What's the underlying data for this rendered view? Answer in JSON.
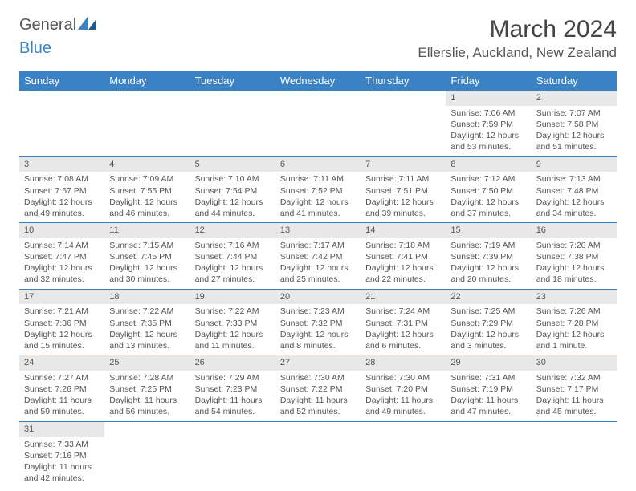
{
  "logo": {
    "word1": "General",
    "word2": "Blue"
  },
  "title": "March 2024",
  "location": "Ellerslie, Auckland, New Zealand",
  "colors": {
    "header_bg": "#3b82c4",
    "header_fg": "#ffffff",
    "daynum_bg": "#e8e8e8",
    "rule": "#3b82c4",
    "text": "#555555"
  },
  "weekdays": [
    "Sunday",
    "Monday",
    "Tuesday",
    "Wednesday",
    "Thursday",
    "Friday",
    "Saturday"
  ],
  "weeks": [
    [
      null,
      null,
      null,
      null,
      null,
      {
        "n": "1",
        "sr": "7:06 AM",
        "ss": "7:59 PM",
        "dl": "12 hours and 53 minutes."
      },
      {
        "n": "2",
        "sr": "7:07 AM",
        "ss": "7:58 PM",
        "dl": "12 hours and 51 minutes."
      }
    ],
    [
      {
        "n": "3",
        "sr": "7:08 AM",
        "ss": "7:57 PM",
        "dl": "12 hours and 49 minutes."
      },
      {
        "n": "4",
        "sr": "7:09 AM",
        "ss": "7:55 PM",
        "dl": "12 hours and 46 minutes."
      },
      {
        "n": "5",
        "sr": "7:10 AM",
        "ss": "7:54 PM",
        "dl": "12 hours and 44 minutes."
      },
      {
        "n": "6",
        "sr": "7:11 AM",
        "ss": "7:52 PM",
        "dl": "12 hours and 41 minutes."
      },
      {
        "n": "7",
        "sr": "7:11 AM",
        "ss": "7:51 PM",
        "dl": "12 hours and 39 minutes."
      },
      {
        "n": "8",
        "sr": "7:12 AM",
        "ss": "7:50 PM",
        "dl": "12 hours and 37 minutes."
      },
      {
        "n": "9",
        "sr": "7:13 AM",
        "ss": "7:48 PM",
        "dl": "12 hours and 34 minutes."
      }
    ],
    [
      {
        "n": "10",
        "sr": "7:14 AM",
        "ss": "7:47 PM",
        "dl": "12 hours and 32 minutes."
      },
      {
        "n": "11",
        "sr": "7:15 AM",
        "ss": "7:45 PM",
        "dl": "12 hours and 30 minutes."
      },
      {
        "n": "12",
        "sr": "7:16 AM",
        "ss": "7:44 PM",
        "dl": "12 hours and 27 minutes."
      },
      {
        "n": "13",
        "sr": "7:17 AM",
        "ss": "7:42 PM",
        "dl": "12 hours and 25 minutes."
      },
      {
        "n": "14",
        "sr": "7:18 AM",
        "ss": "7:41 PM",
        "dl": "12 hours and 22 minutes."
      },
      {
        "n": "15",
        "sr": "7:19 AM",
        "ss": "7:39 PM",
        "dl": "12 hours and 20 minutes."
      },
      {
        "n": "16",
        "sr": "7:20 AM",
        "ss": "7:38 PM",
        "dl": "12 hours and 18 minutes."
      }
    ],
    [
      {
        "n": "17",
        "sr": "7:21 AM",
        "ss": "7:36 PM",
        "dl": "12 hours and 15 minutes."
      },
      {
        "n": "18",
        "sr": "7:22 AM",
        "ss": "7:35 PM",
        "dl": "12 hours and 13 minutes."
      },
      {
        "n": "19",
        "sr": "7:22 AM",
        "ss": "7:33 PM",
        "dl": "12 hours and 11 minutes."
      },
      {
        "n": "20",
        "sr": "7:23 AM",
        "ss": "7:32 PM",
        "dl": "12 hours and 8 minutes."
      },
      {
        "n": "21",
        "sr": "7:24 AM",
        "ss": "7:31 PM",
        "dl": "12 hours and 6 minutes."
      },
      {
        "n": "22",
        "sr": "7:25 AM",
        "ss": "7:29 PM",
        "dl": "12 hours and 3 minutes."
      },
      {
        "n": "23",
        "sr": "7:26 AM",
        "ss": "7:28 PM",
        "dl": "12 hours and 1 minute."
      }
    ],
    [
      {
        "n": "24",
        "sr": "7:27 AM",
        "ss": "7:26 PM",
        "dl": "11 hours and 59 minutes."
      },
      {
        "n": "25",
        "sr": "7:28 AM",
        "ss": "7:25 PM",
        "dl": "11 hours and 56 minutes."
      },
      {
        "n": "26",
        "sr": "7:29 AM",
        "ss": "7:23 PM",
        "dl": "11 hours and 54 minutes."
      },
      {
        "n": "27",
        "sr": "7:30 AM",
        "ss": "7:22 PM",
        "dl": "11 hours and 52 minutes."
      },
      {
        "n": "28",
        "sr": "7:30 AM",
        "ss": "7:20 PM",
        "dl": "11 hours and 49 minutes."
      },
      {
        "n": "29",
        "sr": "7:31 AM",
        "ss": "7:19 PM",
        "dl": "11 hours and 47 minutes."
      },
      {
        "n": "30",
        "sr": "7:32 AM",
        "ss": "7:17 PM",
        "dl": "11 hours and 45 minutes."
      }
    ],
    [
      {
        "n": "31",
        "sr": "7:33 AM",
        "ss": "7:16 PM",
        "dl": "11 hours and 42 minutes."
      },
      null,
      null,
      null,
      null,
      null,
      null
    ]
  ],
  "labels": {
    "sunrise": "Sunrise:",
    "sunset": "Sunset:",
    "daylight": "Daylight:"
  }
}
